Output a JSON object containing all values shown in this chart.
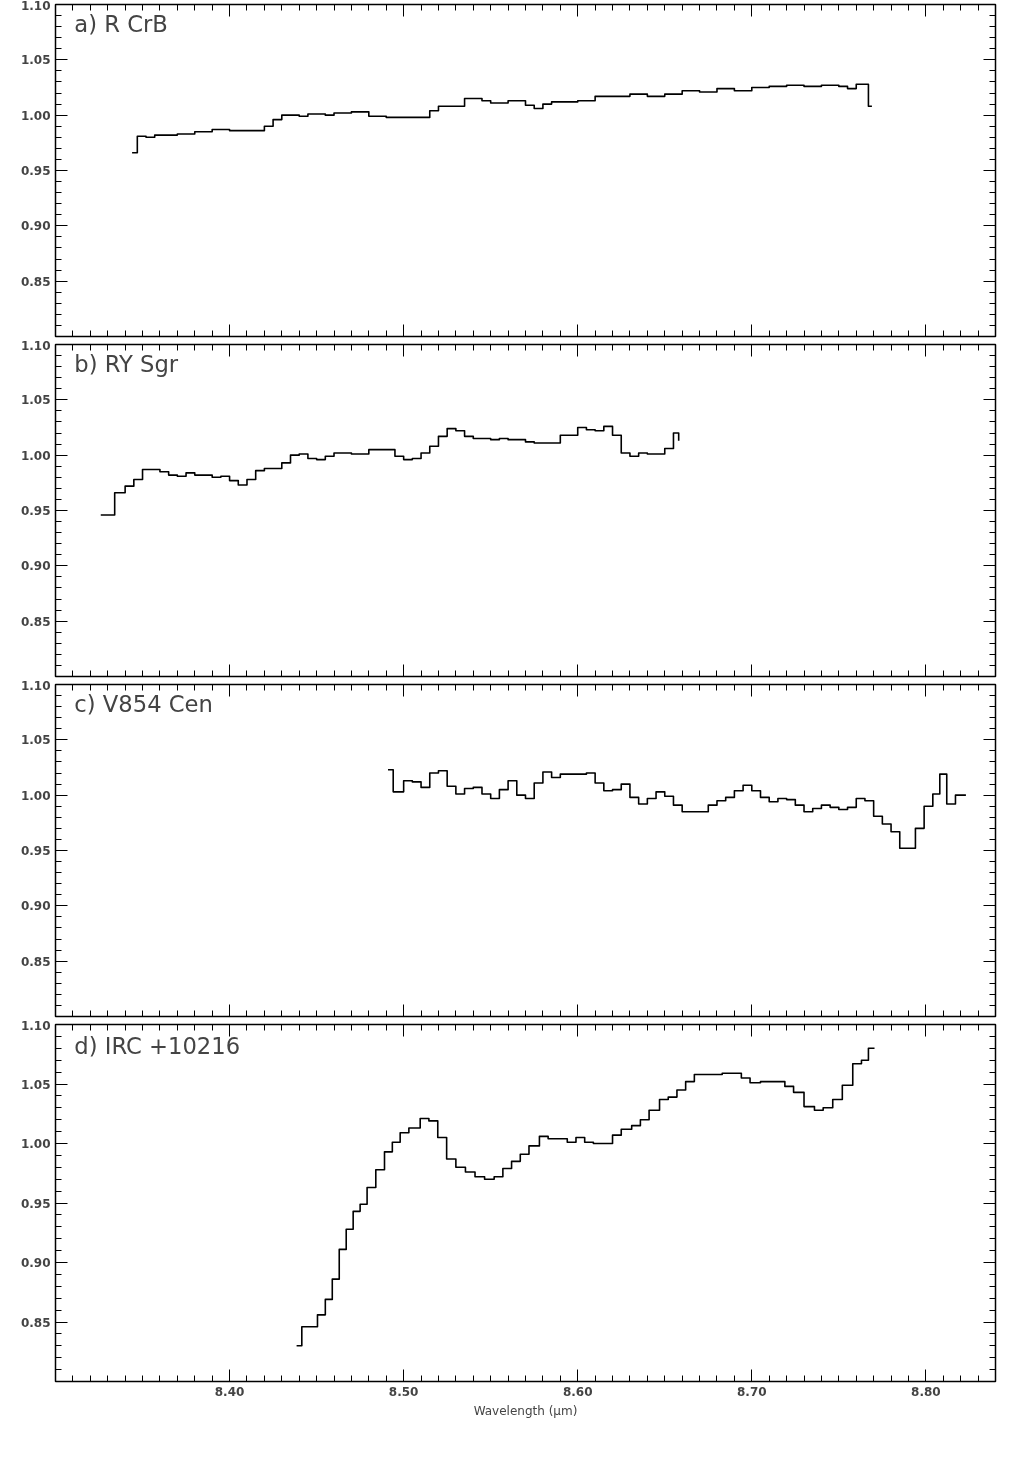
{
  "chart_data": [
    {
      "type": "step",
      "title": "a) R CrB",
      "xlim": [
        8.3,
        8.84
      ],
      "ylim": [
        0.8,
        1.1
      ],
      "xticks": [
        {
          "value": 8.4,
          "label": null
        },
        {
          "value": 8.5,
          "label": null
        },
        {
          "value": 8.6,
          "label": null
        },
        {
          "value": 8.7,
          "label": null
        },
        {
          "value": 8.8,
          "label": null
        }
      ],
      "yticks": [
        0.85,
        {
          "value": 0.9,
          "label": "0.90"
        },
        0.95,
        {
          "value": 1.0,
          "label": "1.00"
        },
        1.05,
        {
          "value": 1.1,
          "label": "1.10"
        }
      ],
      "tick_labels": "y",
      "grid": false,
      "line_style": "solid",
      "marker": "none",
      "series": [
        {
          "color": "#000000",
          "x": [
            8.344,
            8.347,
            8.352,
            8.357,
            8.37,
            8.38,
            8.39,
            8.4,
            8.41,
            8.42,
            8.425,
            8.43,
            8.44,
            8.445,
            8.455,
            8.46,
            8.47,
            8.48,
            8.49,
            8.5,
            8.515,
            8.52,
            8.525,
            8.535,
            8.545,
            8.55,
            8.56,
            8.57,
            8.575,
            8.58,
            8.585,
            8.6,
            8.61,
            8.62,
            8.63,
            8.64,
            8.65,
            8.66,
            8.67,
            8.68,
            8.69,
            8.7,
            8.71,
            8.72,
            8.73,
            8.74,
            8.75,
            8.755,
            8.76,
            8.767,
            8.769
          ],
          "values": [
            0.966,
            0.981,
            0.98,
            0.982,
            0.983,
            0.985,
            0.987,
            0.986,
            0.986,
            0.99,
            0.996,
            1.0,
            0.999,
            1.001,
            1.0,
            1.002,
            1.003,
            0.999,
            0.998,
            0.998,
            1.004,
            1.008,
            1.008,
            1.015,
            1.013,
            1.011,
            1.013,
            1.009,
            1.006,
            1.01,
            1.012,
            1.013,
            1.017,
            1.017,
            1.019,
            1.017,
            1.019,
            1.022,
            1.021,
            1.024,
            1.022,
            1.025,
            1.026,
            1.027,
            1.026,
            1.027,
            1.026,
            1.024,
            1.028,
            1.008,
            1.008
          ]
        }
      ]
    },
    {
      "type": "step",
      "title": "b) RY Sgr",
      "xlim": [
        8.3,
        8.84
      ],
      "ylim": [
        0.8,
        1.1
      ],
      "xticks": [
        {
          "value": 8.4,
          "label": null
        },
        {
          "value": 8.5,
          "label": null
        },
        {
          "value": 8.6,
          "label": null
        },
        {
          "value": 8.7,
          "label": null
        },
        {
          "value": 8.8,
          "label": null
        }
      ],
      "yticks": [
        0.85,
        {
          "value": 0.9,
          "label": "0.90"
        },
        0.95,
        {
          "value": 1.0,
          "label": "1.00"
        },
        1.05,
        {
          "value": 1.1,
          "label": "1.10"
        }
      ],
      "tick_labels": "y",
      "grid": false,
      "line_style": "solid",
      "marker": "none",
      "series": [
        {
          "color": "#000000",
          "x": [
            8.326,
            8.334,
            8.34,
            8.345,
            8.35,
            8.36,
            8.365,
            8.37,
            8.375,
            8.38,
            8.39,
            8.395,
            8.4,
            8.405,
            8.41,
            8.415,
            8.42,
            8.43,
            8.435,
            8.44,
            8.445,
            8.45,
            8.455,
            8.46,
            8.47,
            8.48,
            8.49,
            8.495,
            8.5,
            8.505,
            8.51,
            8.515,
            8.52,
            8.525,
            8.53,
            8.535,
            8.54,
            8.55,
            8.555,
            8.56,
            8.57,
            8.575,
            8.585,
            8.59,
            8.6,
            8.605,
            8.61,
            8.615,
            8.62,
            8.625,
            8.63,
            8.635,
            8.64,
            8.65,
            8.655,
            8.658
          ],
          "values": [
            0.946,
            0.966,
            0.972,
            0.978,
            0.987,
            0.985,
            0.982,
            0.981,
            0.984,
            0.982,
            0.98,
            0.981,
            0.977,
            0.973,
            0.978,
            0.986,
            0.988,
            0.993,
            1.0,
            1.001,
            0.997,
            0.996,
            0.999,
            1.002,
            1.001,
            1.005,
            1.005,
            0.999,
            0.996,
            0.997,
            1.002,
            1.008,
            1.017,
            1.024,
            1.022,
            1.017,
            1.015,
            1.014,
            1.015,
            1.014,
            1.012,
            1.011,
            1.011,
            1.018,
            1.025,
            1.023,
            1.022,
            1.026,
            1.018,
            1.002,
            0.999,
            1.002,
            1.001,
            1.006,
            1.02,
            1.013
          ]
        }
      ]
    },
    {
      "type": "step",
      "title": "c) V854 Cen",
      "xlim": [
        8.3,
        8.84
      ],
      "ylim": [
        0.8,
        1.1
      ],
      "xticks": [
        {
          "value": 8.4,
          "label": null
        },
        {
          "value": 8.5,
          "label": null
        },
        {
          "value": 8.6,
          "label": null
        },
        {
          "value": 8.7,
          "label": null
        },
        {
          "value": 8.8,
          "label": null
        }
      ],
      "yticks": [
        0.85,
        {
          "value": 0.9,
          "label": "0.90"
        },
        0.95,
        {
          "value": 1.0,
          "label": "1.00"
        },
        1.05,
        {
          "value": 1.1,
          "label": "1.10"
        }
      ],
      "tick_labels": "y",
      "grid": false,
      "line_style": "solid",
      "marker": "none",
      "series": [
        {
          "color": "#000000",
          "x": [
            8.491,
            8.494,
            8.5,
            8.505,
            8.51,
            8.515,
            8.52,
            8.525,
            8.53,
            8.535,
            8.54,
            8.545,
            8.55,
            8.555,
            8.56,
            8.565,
            8.57,
            8.575,
            8.58,
            8.585,
            8.59,
            8.6,
            8.605,
            8.61,
            8.615,
            8.62,
            8.625,
            8.63,
            8.635,
            8.64,
            8.645,
            8.65,
            8.655,
            8.66,
            8.67,
            8.675,
            8.68,
            8.685,
            8.69,
            8.695,
            8.7,
            8.705,
            8.71,
            8.715,
            8.72,
            8.725,
            8.73,
            8.735,
            8.74,
            8.745,
            8.75,
            8.755,
            8.76,
            8.765,
            8.77,
            8.775,
            8.78,
            8.785,
            8.794,
            8.799,
            8.804,
            8.808,
            8.812,
            8.817,
            8.821,
            8.823
          ],
          "values": [
            1.023,
            1.003,
            1.013,
            1.012,
            1.007,
            1.02,
            1.022,
            1.008,
            1.001,
            1.006,
            1.007,
            1.001,
            0.997,
            1.005,
            1.013,
            1.0,
            0.997,
            1.011,
            1.021,
            1.016,
            1.019,
            1.019,
            1.02,
            1.011,
            1.004,
            1.005,
            1.01,
            0.998,
            0.992,
            0.997,
            1.003,
            0.999,
            0.991,
            0.985,
            0.985,
            0.991,
            0.995,
            0.998,
            1.004,
            1.009,
            1.004,
            0.998,
            0.994,
            0.997,
            0.996,
            0.991,
            0.985,
            0.988,
            0.991,
            0.989,
            0.987,
            0.989,
            0.997,
            0.995,
            0.981,
            0.974,
            0.967,
            0.952,
            0.97,
            0.99,
            1.001,
            1.019,
            0.992,
            1.0,
            1.0,
            1.0
          ]
        }
      ]
    },
    {
      "type": "step",
      "title": "d) IRC +10216",
      "xlabel": "Wavelength (μm)",
      "xlim": [
        8.3,
        8.84
      ],
      "ylim": [
        0.8,
        1.1
      ],
      "xticks": [
        {
          "value": 8.4,
          "label": "8.40"
        },
        {
          "value": 8.5,
          "label": "8.50"
        },
        {
          "value": 8.6,
          "label": "8.60"
        },
        {
          "value": 8.7,
          "label": "8.70"
        },
        {
          "value": 8.8,
          "label": "8.80"
        }
      ],
      "yticks": [
        0.85,
        {
          "value": 0.9,
          "label": "0.90"
        },
        0.95,
        {
          "value": 1.0,
          "label": "1.00"
        },
        1.05,
        {
          "value": 1.1,
          "label": "1.10"
        }
      ],
      "grid": false,
      "line_style": "solid",
      "marker": "none",
      "series": [
        {
          "color": "#000000",
          "x": [
            8.4385,
            8.4415,
            8.447,
            8.4505,
            8.455,
            8.459,
            8.463,
            8.467,
            8.471,
            8.475,
            8.479,
            8.484,
            8.489,
            8.4935,
            8.498,
            8.503,
            8.5095,
            8.5145,
            8.5196,
            8.5247,
            8.53,
            8.5355,
            8.541,
            8.5465,
            8.552,
            8.557,
            8.562,
            8.567,
            8.572,
            8.578,
            8.583,
            8.594,
            8.599,
            8.604,
            8.609,
            8.62,
            8.625,
            8.631,
            8.636,
            8.641,
            8.647,
            8.652,
            8.657,
            8.662,
            8.667,
            8.683,
            8.694,
            8.699,
            8.705,
            8.719,
            8.724,
            8.73,
            8.736,
            8.741,
            8.7465,
            8.752,
            8.758,
            8.763,
            8.767,
            8.7705
          ],
          "values": [
            0.83,
            0.846,
            0.846,
            0.856,
            0.869,
            0.886,
            0.911,
            0.928,
            0.943,
            0.949,
            0.963,
            0.978,
            0.993,
            1.001,
            1.009,
            1.013,
            1.021,
            1.019,
            1.005,
            0.987,
            0.98,
            0.976,
            0.972,
            0.97,
            0.972,
            0.979,
            0.985,
            0.991,
            0.998,
            1.006,
            1.004,
            1.001,
            1.005,
            1.001,
            1.0,
            1.007,
            1.012,
            1.015,
            1.02,
            1.028,
            1.037,
            1.039,
            1.045,
            1.052,
            1.058,
            1.059,
            1.055,
            1.051,
            1.052,
            1.048,
            1.043,
            1.031,
            1.028,
            1.03,
            1.037,
            1.049,
            1.067,
            1.07,
            1.08,
            1.08
          ]
        }
      ]
    }
  ]
}
